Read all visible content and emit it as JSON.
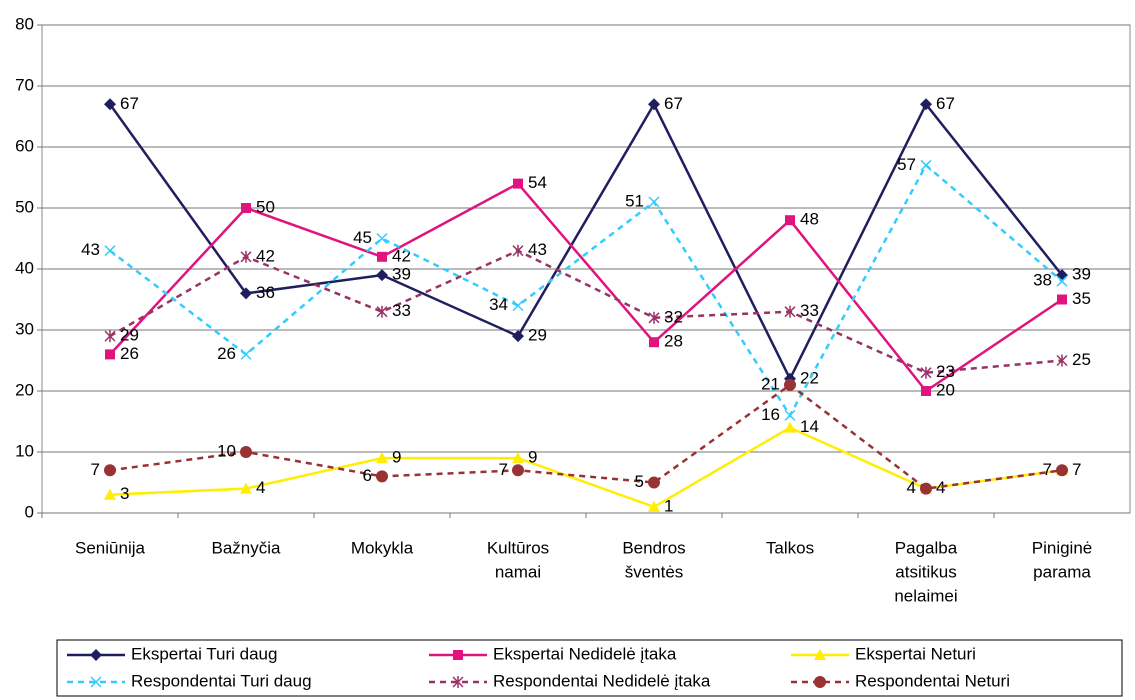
{
  "chart_data": {
    "type": "line",
    "categories": [
      [
        "Seniūnija"
      ],
      [
        "Bažnyčia"
      ],
      [
        "Mokykla"
      ],
      [
        "Kultūros",
        "namai"
      ],
      [
        "Bendros",
        "šventės"
      ],
      [
        "Talkos"
      ],
      [
        "Pagalba",
        "atsitikus",
        "nelaimei"
      ],
      [
        "Piniginė",
        "parama"
      ]
    ],
    "series": [
      {
        "name": "Ekspertai Turi daug",
        "color": "#1f1f5f",
        "marker": "diamond",
        "dashed": false,
        "values": [
          67,
          36,
          39,
          29,
          67,
          22,
          67,
          39
        ]
      },
      {
        "name": "Ekspertai Nedidelė įtaka",
        "color": "#e0137f",
        "marker": "square",
        "dashed": false,
        "values": [
          26,
          50,
          42,
          54,
          28,
          48,
          20,
          35
        ]
      },
      {
        "name": "Ekspertai Neturi",
        "color": "#ffee00",
        "marker": "triangle",
        "dashed": false,
        "values": [
          3,
          4,
          9,
          9,
          1,
          14,
          4,
          7
        ]
      },
      {
        "name": "Respondentai Turi daug",
        "color": "#33ccff",
        "marker": "x",
        "dashed": true,
        "values": [
          43,
          26,
          45,
          34,
          51,
          16,
          57,
          38
        ]
      },
      {
        "name": "Respondentai Nedidelė įtaka",
        "color": "#993366",
        "marker": "asterisk",
        "dashed": true,
        "values": [
          29,
          42,
          33,
          43,
          32,
          33,
          23,
          25
        ]
      },
      {
        "name": "Respondentai Neturi",
        "color": "#993333",
        "marker": "circle",
        "dashed": true,
        "values": [
          7,
          10,
          6,
          7,
          5,
          21,
          4,
          7
        ]
      }
    ],
    "ylim": [
      0,
      80
    ],
    "yticks": [
      0,
      10,
      20,
      30,
      40,
      50,
      60,
      70,
      80
    ],
    "legend": "bottom"
  }
}
